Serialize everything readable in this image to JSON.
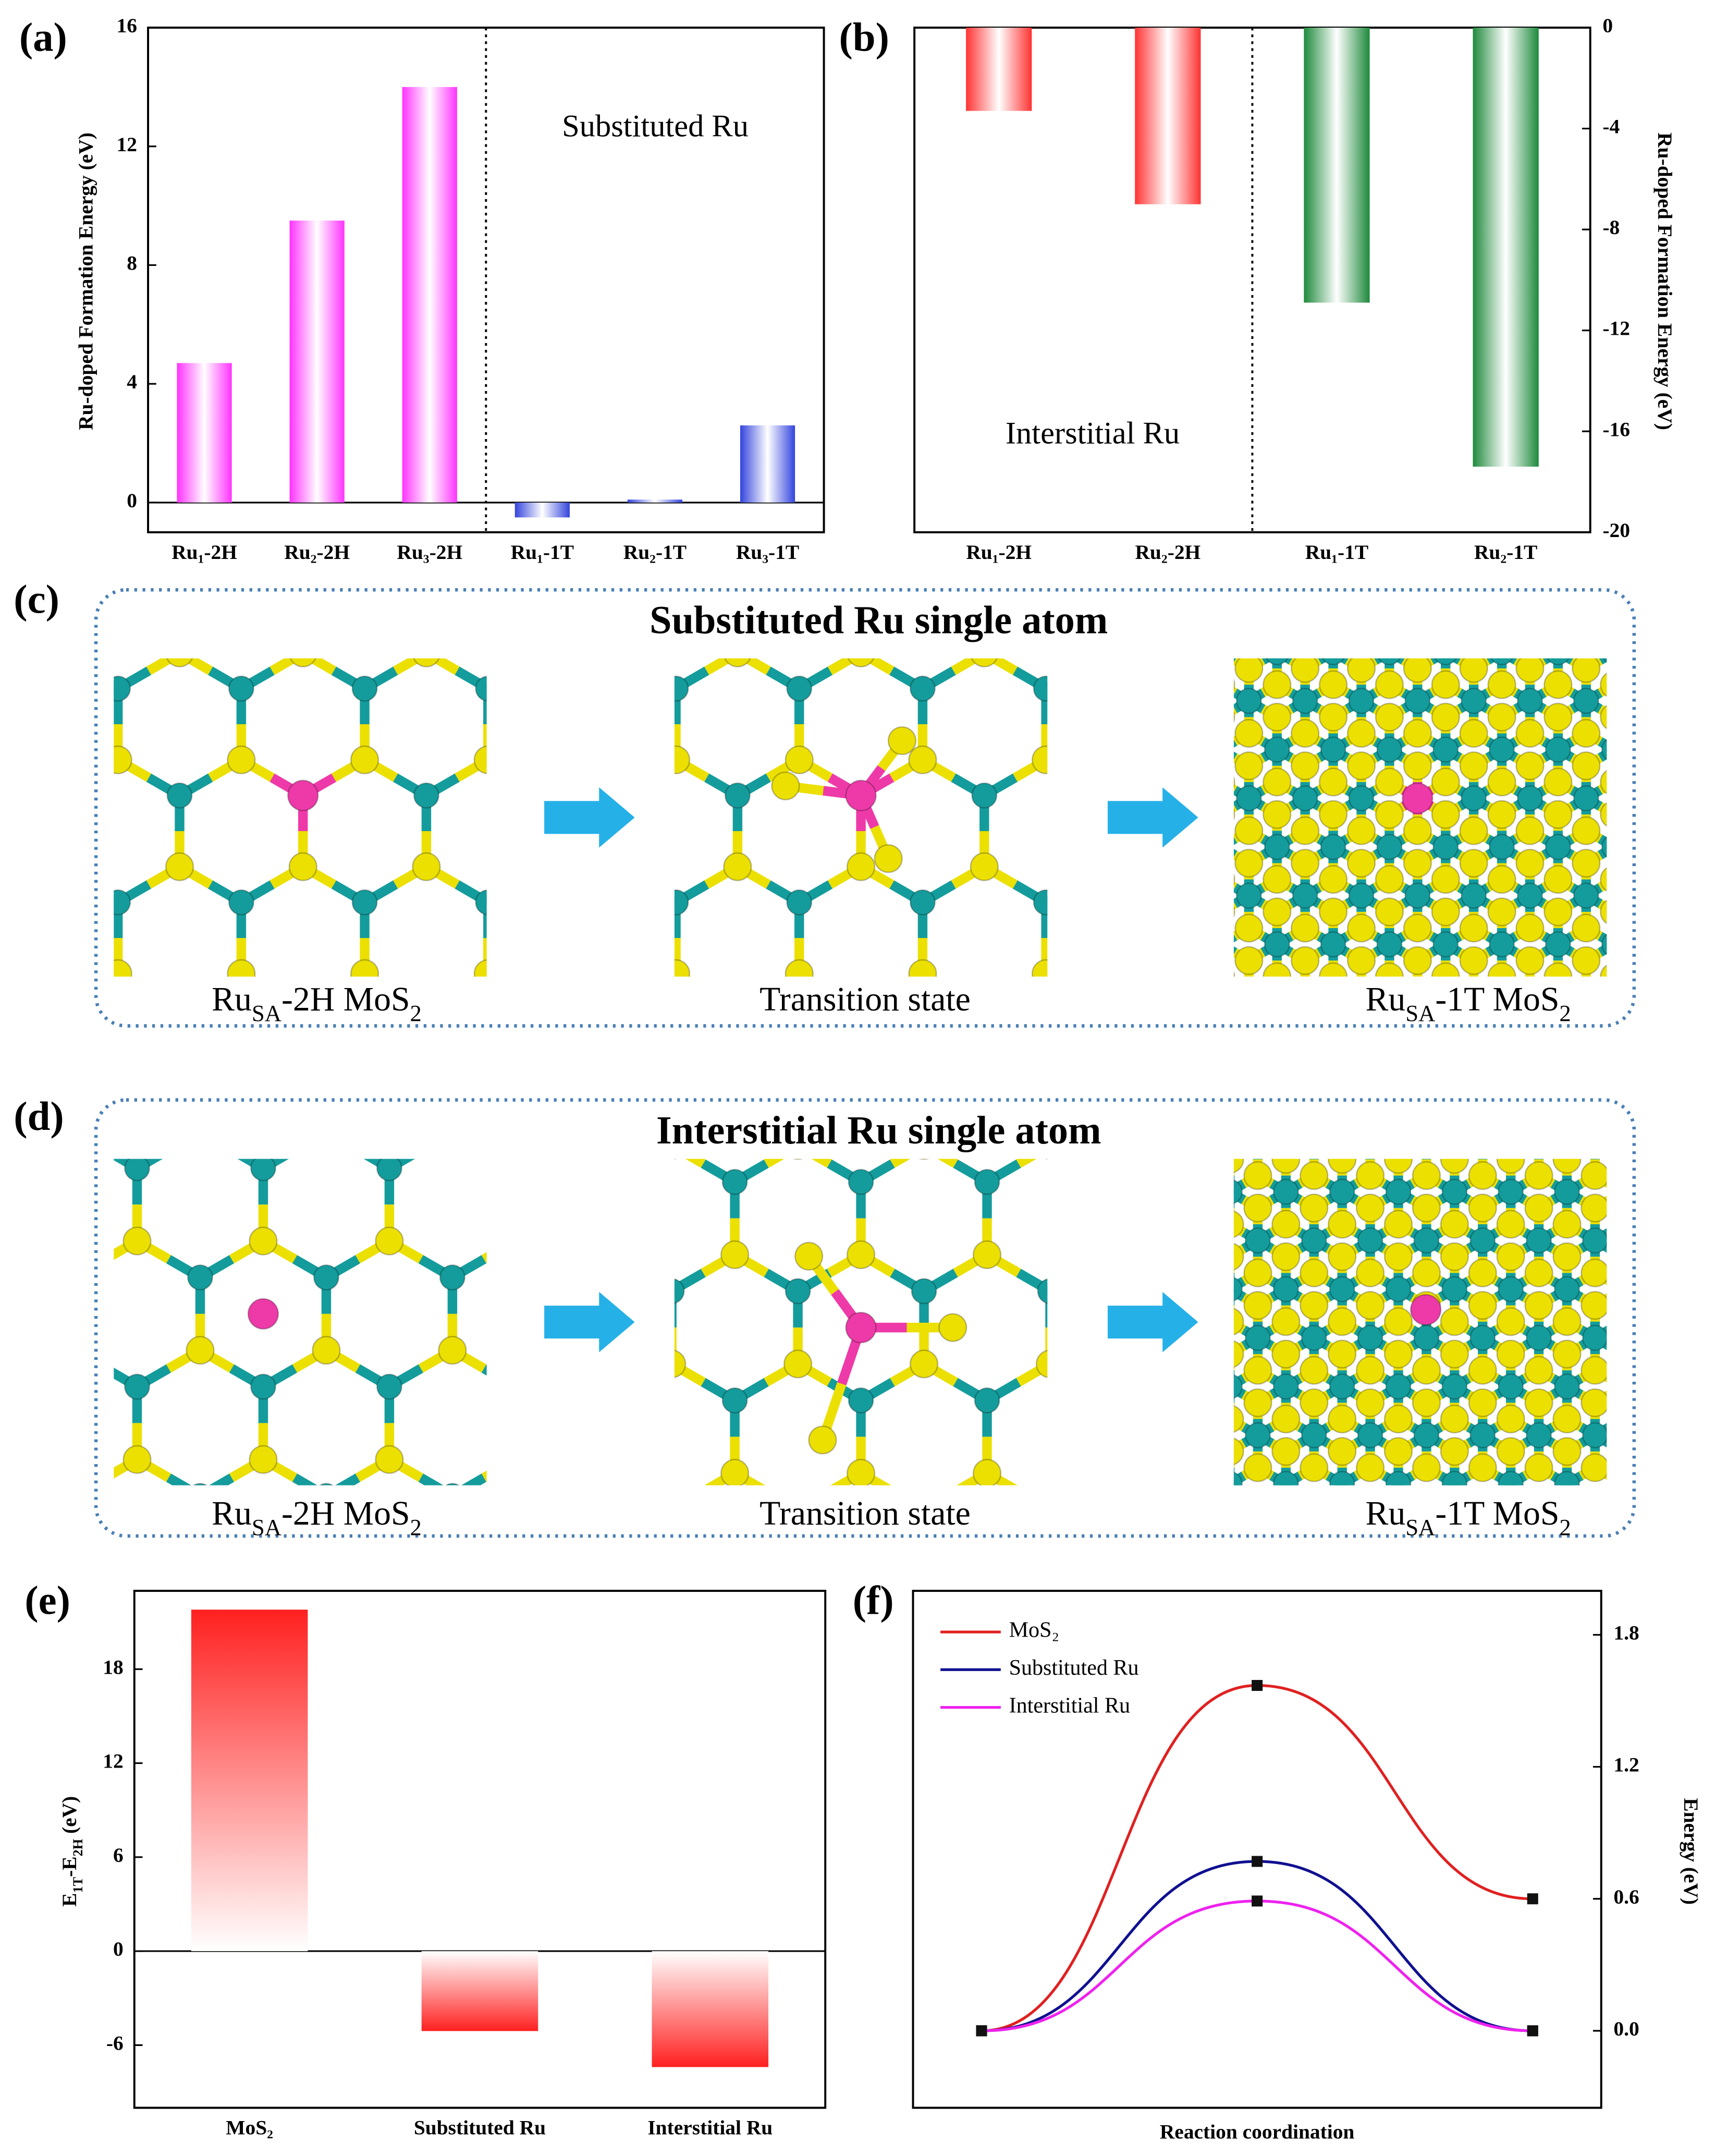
{
  "chart_data": [
    {
      "type": "bar",
      "label": "(a)",
      "ylabel": "Ru-doped Formation Energy (eV)",
      "annotation": "Substituted Ru",
      "categories": [
        "Ru₁-2H",
        "Ru₂-2H",
        "Ru₃-2H",
        "Ru₁-1T",
        "Ru₂-1T",
        "Ru₃-1T"
      ],
      "values": [
        4.7,
        9.5,
        14.0,
        -0.5,
        0.1,
        2.6
      ],
      "colors": [
        "#ff33ff",
        "#ff33ff",
        "#ff33ff",
        "#3344dd",
        "#3344dd",
        "#3344dd"
      ],
      "fill_style": "horizontal-gradient",
      "ylim": [
        -1,
        16
      ],
      "yticks": [
        0,
        4,
        8,
        12,
        16
      ],
      "y_axis_side": "left"
    },
    {
      "type": "bar",
      "label": "(b)",
      "ylabel": "Ru-doped Formation Energy (eV)",
      "annotation": "Interstitial Ru",
      "categories": [
        "Ru₁-2H",
        "Ru₂-2H",
        "Ru₁-1T",
        "Ru₂-1T"
      ],
      "values": [
        -3.3,
        -7.0,
        -10.9,
        -17.4
      ],
      "colors": [
        "#ff3333",
        "#ff3333",
        "#1e8a3c",
        "#1e8a3c"
      ],
      "fill_style": "horizontal-gradient",
      "ylim": [
        -20,
        0
      ],
      "yticks": [
        0,
        -4,
        -8,
        -12,
        -16,
        -20
      ],
      "y_axis_side": "right"
    },
    {
      "type": "bar",
      "label": "(e)",
      "ylabel": [
        "E",
        "1T",
        "-E",
        "2H",
        " (eV)"
      ],
      "categories": [
        "MoS₂",
        "Substituted Ru",
        "Interstitial Ru"
      ],
      "values": [
        21.8,
        -5.1,
        -7.4
      ],
      "colors": [
        "#ff2020",
        "#ff2020",
        "#ff2020"
      ],
      "fill_style": "vertical-gradient",
      "ylim": [
        -10,
        23
      ],
      "yticks": [
        -6,
        0,
        6,
        12,
        18
      ],
      "y_axis_side": "left"
    },
    {
      "type": "line",
      "label": "(f)",
      "ylabel": "Energy (eV)",
      "xlabel": "Reaction coordination",
      "categories": [
        null,
        null,
        null
      ],
      "series": [
        {
          "name": "MoS₂",
          "color": "#e02020",
          "values": [
            0.0,
            1.57,
            0.6
          ]
        },
        {
          "name": "Substituted Ru",
          "color": "#101090",
          "values": [
            0.0,
            0.77,
            0.0
          ]
        },
        {
          "name": "Interstitial Ru",
          "color": "#ee22ee",
          "values": [
            0.0,
            0.59,
            0.0
          ]
        }
      ],
      "ylim": [
        -0.35,
        2.0
      ],
      "yticks": [
        {
          "value": 0,
          "label": "0.0"
        },
        0.6,
        1.2,
        1.8
      ],
      "y_axis_side": "right",
      "legend": "upper-left"
    }
  ],
  "diagrams": [
    {
      "label": "(c)",
      "title": "Substituted Ru single atom",
      "captions": [
        [
          "Ru",
          "SA",
          "-2H MoS",
          "2"
        ],
        [
          "Transition state"
        ],
        [
          "Ru",
          "SA",
          "-1T MoS",
          "2"
        ]
      ]
    },
    {
      "label": "(d)",
      "title": "Interstitial Ru single atom",
      "captions": [
        [
          "Ru",
          "SA",
          "-2H MoS",
          "2"
        ],
        [
          "Transition state"
        ],
        [
          "Ru",
          "SA",
          "-1T MoS",
          "2"
        ]
      ]
    }
  ]
}
